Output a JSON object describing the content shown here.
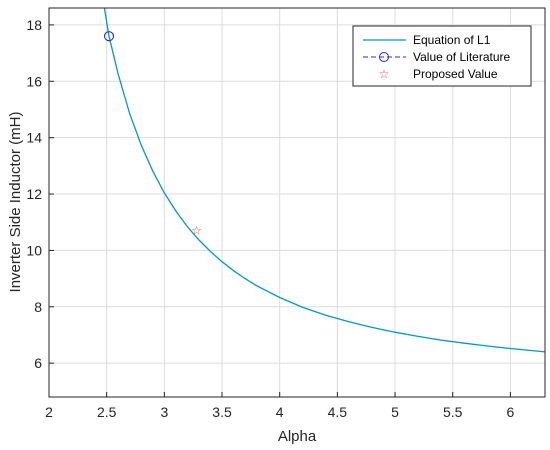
{
  "chart_data": {
    "type": "line",
    "xlabel": "Alpha",
    "ylabel": "Inverter Side Inductor (mH)",
    "xlim": [
      2,
      6.3
    ],
    "ylim": [
      4.8,
      18.6
    ],
    "grid": true,
    "legend_position": "top-right",
    "x_ticks": [
      2,
      2.5,
      3,
      3.5,
      4,
      4.5,
      5,
      5.5,
      6
    ],
    "x_tick_labels": [
      "2",
      "2.5",
      "3",
      "3.5",
      "4",
      "4.5",
      "5",
      "5.5",
      "6"
    ],
    "y_ticks": [
      6,
      8,
      10,
      12,
      14,
      16,
      18
    ],
    "y_tick_labels": [
      "6",
      "8",
      "10",
      "12",
      "14",
      "16",
      "18"
    ],
    "series": [
      {
        "name": "Equation of L1",
        "style": "line",
        "color": "#0099cc",
        "x": [
          2.48,
          2.52,
          2.6,
          2.7,
          2.8,
          2.9,
          3.0,
          3.1,
          3.2,
          3.3,
          3.4,
          3.5,
          3.6,
          3.7,
          3.8,
          4.0,
          4.2,
          4.4,
          4.6,
          4.8,
          5.0,
          5.2,
          5.4,
          5.6,
          5.8,
          6.0,
          6.3
        ],
        "y": [
          18.6,
          17.6,
          16.25,
          14.85,
          13.73,
          12.81,
          12.04,
          11.4,
          10.84,
          10.37,
          9.96,
          9.6,
          9.28,
          9.0,
          8.75,
          8.33,
          7.98,
          7.7,
          7.47,
          7.27,
          7.1,
          6.95,
          6.82,
          6.71,
          6.61,
          6.52,
          6.4
        ]
      },
      {
        "name": "Value of Literature",
        "style": "dashed-circle",
        "color": "#2b2bd6",
        "x": [
          2.52
        ],
        "y": [
          17.6
        ]
      },
      {
        "name": "Proposed Value",
        "style": "star",
        "color": "#e8423c",
        "x": [
          3.28
        ],
        "y": [
          10.7
        ]
      }
    ]
  }
}
